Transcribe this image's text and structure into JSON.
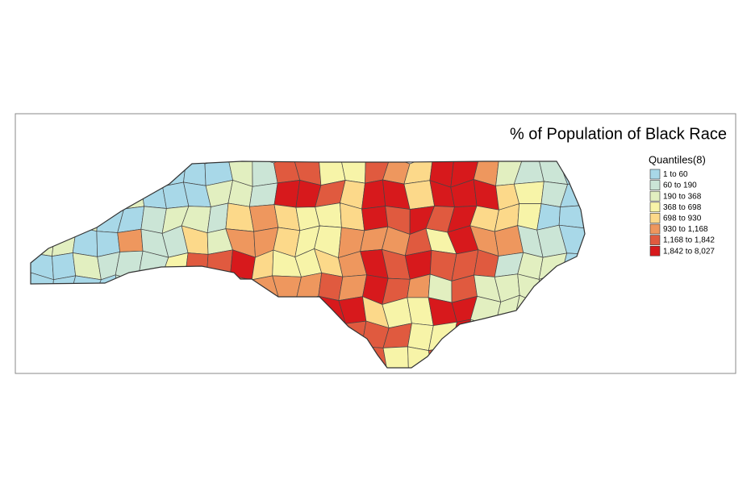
{
  "map": {
    "title": "% of Population of Black Race",
    "legend": {
      "title": "Quantiles(8)",
      "items": [
        {
          "label": "1 to 60",
          "color": "#a8d8e8"
        },
        {
          "label": "60 to 190",
          "color": "#cbe5d6"
        },
        {
          "label": "190 to 368",
          "color": "#e2efc0"
        },
        {
          "label": "368 to 698",
          "color": "#f7f4a8"
        },
        {
          "label": "698 to 930",
          "color": "#fcd98a"
        },
        {
          "label": "930 to 1,168",
          "color": "#ee975e"
        },
        {
          "label": "1,168 to 1,842",
          "color": "#e05a3f"
        },
        {
          "label": "1,842 to 8,027",
          "color": "#d7191c"
        }
      ]
    }
  }
}
